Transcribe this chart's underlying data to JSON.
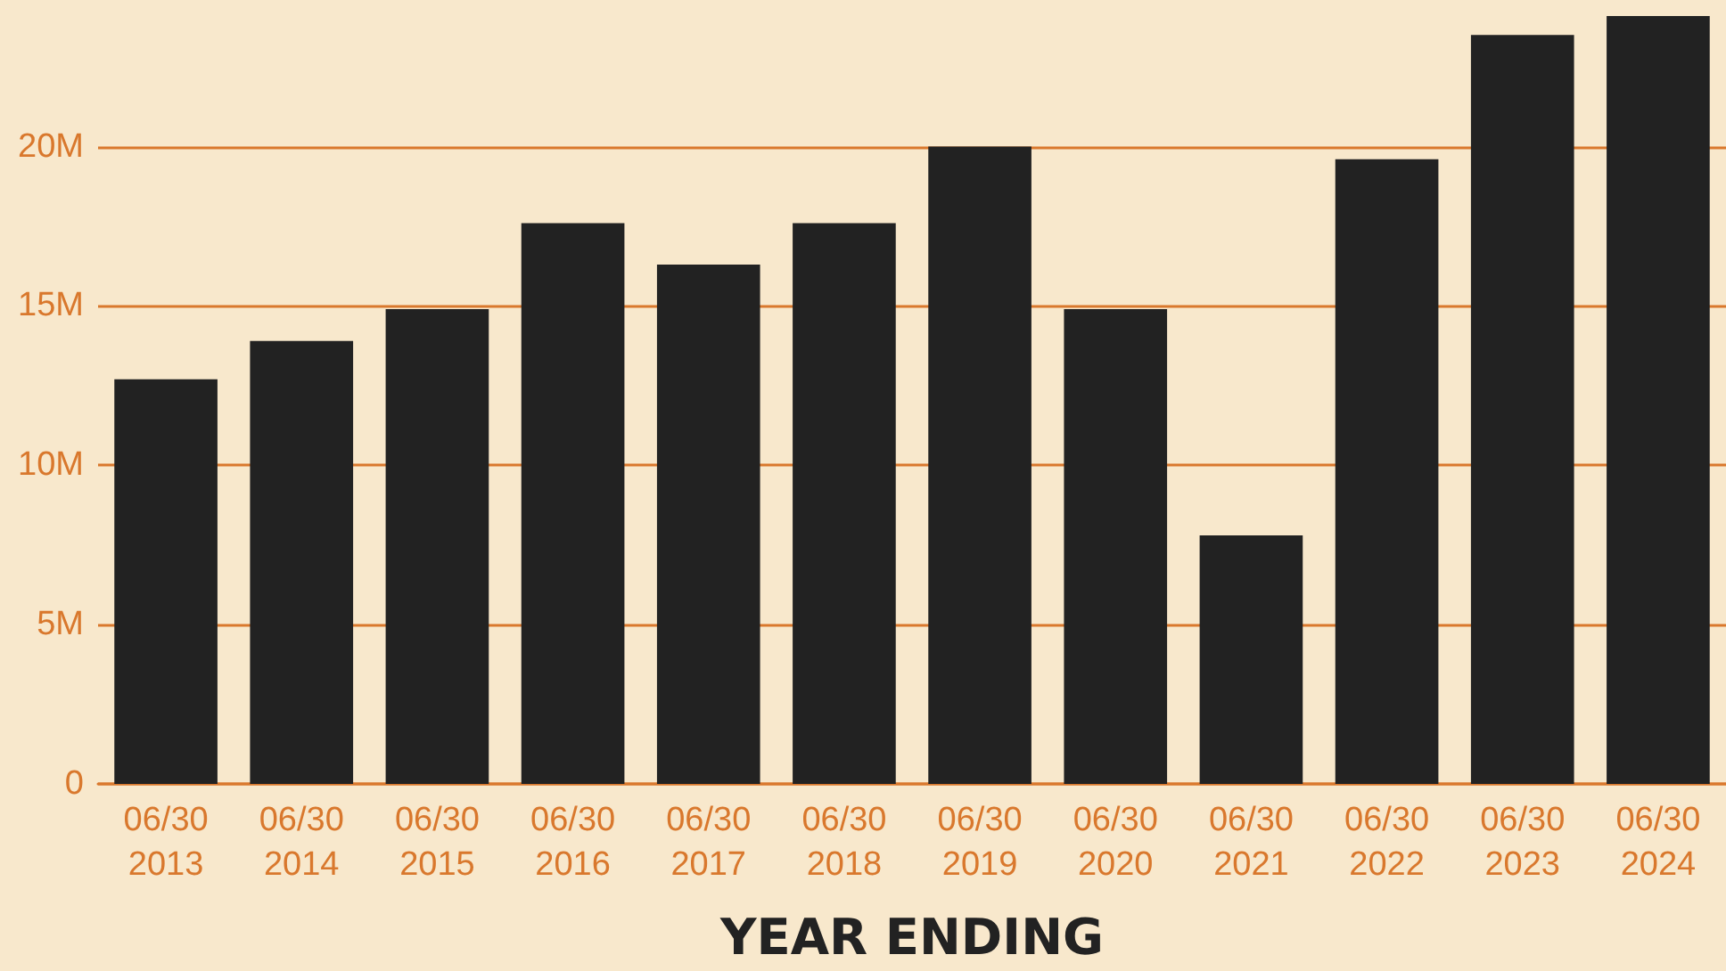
{
  "chart_data": {
    "type": "bar",
    "xlabel": "YEAR ENDING",
    "categories": [
      "06/30\n2013",
      "06/30\n2014",
      "06/30\n2015",
      "06/30\n2016",
      "06/30\n2017",
      "06/30\n2018",
      "06/30\n2019",
      "06/30\n2020",
      "06/30\n2021",
      "06/30\n2022",
      "06/30\n2023",
      "06/30\n2024"
    ],
    "values": [
      12.7,
      13.9,
      14.9,
      17.6,
      16.3,
      17.6,
      20.0,
      14.9,
      7.8,
      19.6,
      23.5,
      24.1
    ],
    "color": "#222222",
    "ylim": [
      0,
      24.6
    ],
    "yticks": [
      {
        "value": 0,
        "label": "0"
      },
      {
        "value": 5,
        "label": "5M"
      },
      {
        "value": 10,
        "label": "10M"
      },
      {
        "value": 15,
        "label": "15M"
      },
      {
        "value": 20,
        "label": "20M"
      }
    ],
    "grid": "y"
  }
}
